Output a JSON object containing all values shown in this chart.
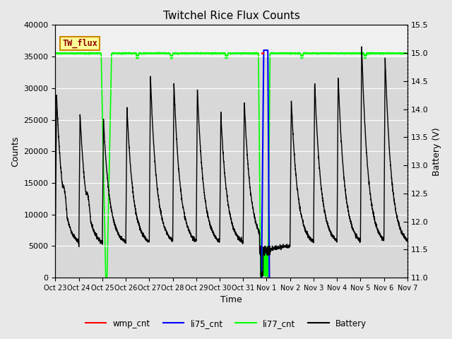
{
  "title": "Twitchel Rice Flux Counts",
  "xlabel": "Time",
  "ylabel_left": "Counts",
  "ylabel_right": "Battery (V)",
  "ylim_left": [
    0,
    40000
  ],
  "ylim_right": [
    11.0,
    15.5
  ],
  "bg_outer": "#e8e8e8",
  "bg_plot_light": "#f0f0f0",
  "bg_plot_dark": "#d8d8d8",
  "tw_flux_box_color": "#ffff99",
  "tw_flux_text_color": "#8b0000",
  "tw_flux_edge_color": "#cc8800",
  "xtick_labels": [
    "Oct 23",
    "Oct 24",
    "Oct 25",
    "Oct 26",
    "Oct 27",
    "Oct 28",
    "Oct 29",
    "Oct 30",
    "Oct 31",
    "Nov 1",
    "Nov 2",
    "Nov 3",
    "Nov 4",
    "Nov 5",
    "Nov 6",
    "Nov 7"
  ],
  "battery_right_yticks": [
    11.0,
    11.5,
    12.0,
    12.5,
    13.0,
    13.5,
    14.0,
    14.5,
    15.0,
    15.5
  ],
  "left_yticks": [
    0,
    5000,
    10000,
    15000,
    20000,
    25000,
    30000,
    35000,
    40000
  ],
  "legend_colors": [
    "red",
    "blue",
    "lime",
    "black"
  ],
  "legend_labels": [
    "wmp_cnt",
    "li75_cnt",
    "li77_cnt",
    "Battery"
  ]
}
